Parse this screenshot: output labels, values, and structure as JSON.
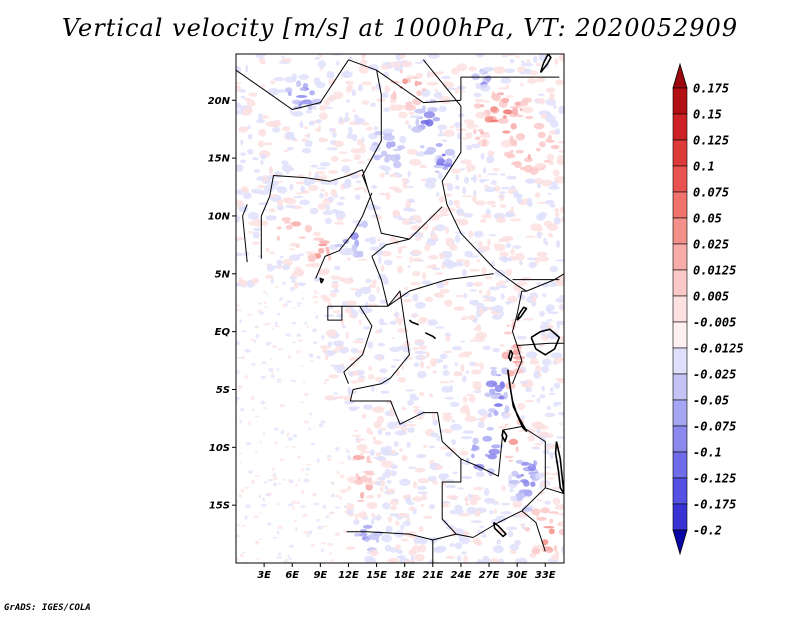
{
  "title": "Vertical velocity [m/s] at 1000hPa, VT: 2020052909",
  "credit": "GrADS: IGES/COLA",
  "map": {
    "lon_min": 0,
    "lon_max": 35,
    "lat_min": -20,
    "lat_max": 24,
    "lat_ticks": [
      {
        "value": 20,
        "label": "20N"
      },
      {
        "value": 15,
        "label": "15N"
      },
      {
        "value": 10,
        "label": "10N"
      },
      {
        "value": 5,
        "label": "5N"
      },
      {
        "value": 0,
        "label": "EQ"
      },
      {
        "value": -5,
        "label": "5S"
      },
      {
        "value": -10,
        "label": "10S"
      },
      {
        "value": -15,
        "label": "15S"
      }
    ],
    "lon_ticks": [
      {
        "value": 3,
        "label": "3E"
      },
      {
        "value": 6,
        "label": "6E"
      },
      {
        "value": 9,
        "label": "9E"
      },
      {
        "value": 12,
        "label": "12E"
      },
      {
        "value": 15,
        "label": "15E"
      },
      {
        "value": 18,
        "label": "18E"
      },
      {
        "value": 21,
        "label": "21E"
      },
      {
        "value": 24,
        "label": "24E"
      },
      {
        "value": 27,
        "label": "27E"
      },
      {
        "value": 30,
        "label": "30E"
      },
      {
        "value": 33,
        "label": "33E"
      }
    ],
    "hotspots": [
      {
        "lon": 18.2,
        "lat": 21.0,
        "sign": 1,
        "strength": 0.8,
        "sx": 1.6,
        "sy": 1.4
      },
      {
        "lon": 20.5,
        "lat": 17.5,
        "sign": -1,
        "strength": 0.9,
        "sx": 1.2,
        "sy": 2.0
      },
      {
        "lon": 22.0,
        "lat": 15.0,
        "sign": -1,
        "strength": 0.8,
        "sx": 1.0,
        "sy": 1.5
      },
      {
        "lon": 28.5,
        "lat": 18.5,
        "sign": 1,
        "strength": 0.7,
        "sx": 3.0,
        "sy": 2.5
      },
      {
        "lon": 31.5,
        "lat": 16.0,
        "sign": 1,
        "strength": 0.6,
        "sx": 2.5,
        "sy": 2.0
      },
      {
        "lon": 26.5,
        "lat": 21.5,
        "sign": -1,
        "strength": 0.5,
        "sx": 1.5,
        "sy": 1.2
      },
      {
        "lon": 7.0,
        "lat": 20.5,
        "sign": -1,
        "strength": 0.6,
        "sx": 2.0,
        "sy": 1.5
      },
      {
        "lon": 9.0,
        "lat": 7.0,
        "sign": 1,
        "strength": 0.7,
        "sx": 1.0,
        "sy": 2.0
      },
      {
        "lon": 6.5,
        "lat": 8.5,
        "sign": 1,
        "strength": 0.5,
        "sx": 2.5,
        "sy": 1.5
      },
      {
        "lon": 12.5,
        "lat": 8.0,
        "sign": -1,
        "strength": 0.5,
        "sx": 2.0,
        "sy": 1.5
      },
      {
        "lon": 29.5,
        "lat": -2.0,
        "sign": 1,
        "strength": 0.8,
        "sx": 0.8,
        "sy": 3.0
      },
      {
        "lon": 28.0,
        "lat": -5.0,
        "sign": -1,
        "strength": 0.8,
        "sx": 1.2,
        "sy": 2.5
      },
      {
        "lon": 26.5,
        "lat": -10.5,
        "sign": -1,
        "strength": 0.9,
        "sx": 1.5,
        "sy": 2.0
      },
      {
        "lon": 29.5,
        "lat": -9.0,
        "sign": 1,
        "strength": 0.7,
        "sx": 1.0,
        "sy": 2.0
      },
      {
        "lon": 31.0,
        "lat": -12.5,
        "sign": -1,
        "strength": 0.7,
        "sx": 1.2,
        "sy": 2.5
      },
      {
        "lon": 13.5,
        "lat": -12.5,
        "sign": 1,
        "strength": 0.6,
        "sx": 1.0,
        "sy": 2.5
      },
      {
        "lon": 14.0,
        "lat": -17.5,
        "sign": -1,
        "strength": 0.5,
        "sx": 1.5,
        "sy": 1.5
      },
      {
        "lon": 33.0,
        "lat": -17.5,
        "sign": 1,
        "strength": 0.6,
        "sx": 2.0,
        "sy": 2.0
      },
      {
        "lon": 16.0,
        "lat": 16.0,
        "sign": -1,
        "strength": 0.4,
        "sx": 2.0,
        "sy": 2.0
      }
    ],
    "countries": [
      [
        [
          0,
          22.6
        ],
        [
          6,
          19.2
        ],
        [
          9,
          19.8
        ],
        [
          12,
          23.5
        ]
      ],
      [
        [
          12,
          23.5
        ],
        [
          15,
          22.6
        ],
        [
          20,
          19.8
        ],
        [
          24,
          20.0
        ]
      ],
      [
        [
          24,
          20.0
        ],
        [
          24,
          22.0
        ],
        [
          34.5,
          22.0
        ]
      ],
      [
        [
          20,
          23.5
        ],
        [
          24,
          19.5
        ],
        [
          24,
          15.5
        ],
        [
          22,
          13.0
        ],
        [
          22.5,
          11.0
        ],
        [
          24,
          8.5
        ]
      ],
      [
        [
          24,
          8.5
        ],
        [
          27.5,
          5.5
        ],
        [
          30,
          4.0
        ],
        [
          31,
          3.5
        ],
        [
          34,
          4.5
        ],
        [
          35,
          5.0
        ]
      ],
      [
        [
          15,
          22.6
        ],
        [
          15.5,
          20.5
        ],
        [
          15.5,
          16.5
        ],
        [
          13.5,
          13.5
        ],
        [
          14,
          12.5
        ]
      ],
      [
        [
          14,
          12.5
        ],
        [
          13.5,
          14.0
        ],
        [
          12,
          13.5
        ],
        [
          10,
          13.0
        ],
        [
          7.5,
          13.3
        ],
        [
          4,
          13.5
        ],
        [
          3.6,
          11.7
        ]
      ],
      [
        [
          3.6,
          11.7
        ],
        [
          2.7,
          10.0
        ],
        [
          2.7,
          6.3
        ]
      ],
      [
        [
          1.2,
          11.0
        ],
        [
          0.7,
          10.0
        ],
        [
          1.2,
          6.0
        ]
      ],
      [
        [
          14,
          12.5
        ],
        [
          15,
          10.0
        ],
        [
          15.5,
          8.5
        ],
        [
          18.5,
          8.0
        ],
        [
          22,
          10.8
        ]
      ],
      [
        [
          8.5,
          4.6
        ],
        [
          9.5,
          6.5
        ],
        [
          11,
          7.0
        ],
        [
          12.5,
          8.5
        ],
        [
          13.5,
          10.0
        ],
        [
          14.5,
          12.0
        ]
      ],
      [
        [
          14.5,
          6.5
        ],
        [
          16,
          7.5
        ],
        [
          18.5,
          8.0
        ]
      ],
      [
        [
          14.5,
          6.5
        ],
        [
          15.5,
          4.5
        ],
        [
          16.2,
          2.2
        ],
        [
          18.5,
          3.5
        ],
        [
          22.5,
          4.5
        ],
        [
          27.5,
          5.0
        ]
      ],
      [
        [
          9.8,
          2.2
        ],
        [
          11.3,
          2.2
        ],
        [
          13.2,
          2.2
        ],
        [
          16.2,
          2.2
        ]
      ],
      [
        [
          9.8,
          2.2
        ],
        [
          9.8,
          1.0
        ],
        [
          11.3,
          1.0
        ],
        [
          11.3,
          2.2
        ]
      ],
      [
        [
          13.2,
          2.2
        ],
        [
          14.5,
          0.5
        ],
        [
          13.5,
          -2.0
        ],
        [
          11.5,
          -3.5
        ],
        [
          12.0,
          -4.5
        ]
      ],
      [
        [
          16.2,
          2.2
        ],
        [
          17.5,
          3.5
        ],
        [
          18.5,
          -2.0
        ],
        [
          16.5,
          -4.0
        ],
        [
          15.5,
          -4.5
        ],
        [
          12.5,
          -5.0
        ],
        [
          12.2,
          -6.0
        ]
      ],
      [
        [
          12.2,
          -6.0
        ],
        [
          16.5,
          -6.0
        ],
        [
          17.5,
          -8.0
        ],
        [
          20,
          -7.0
        ],
        [
          21.5,
          -7.0
        ],
        [
          22,
          -9.5
        ],
        [
          24,
          -11.0
        ]
      ],
      [
        [
          24,
          -11.0
        ],
        [
          24,
          -13.0
        ],
        [
          22,
          -13.0
        ],
        [
          22,
          -16.2
        ],
        [
          23.5,
          -17.5
        ],
        [
          25.3,
          -17.8
        ]
      ],
      [
        [
          11.8,
          -17.3
        ],
        [
          14,
          -17.3
        ],
        [
          18.5,
          -17.5
        ],
        [
          21,
          -18.0
        ],
        [
          23.5,
          -17.5
        ]
      ],
      [
        [
          21,
          -18.0
        ],
        [
          21,
          -22.0
        ]
      ],
      [
        [
          24,
          -11.0
        ],
        [
          26,
          -11.7
        ],
        [
          28,
          -12.5
        ],
        [
          28.5,
          -8.5
        ],
        [
          30.5,
          -8.2
        ]
      ],
      [
        [
          29.5,
          -4.5
        ],
        [
          30.5,
          -2.5
        ],
        [
          30,
          -1.2
        ],
        [
          29.5,
          0.0
        ],
        [
          30,
          1.5
        ],
        [
          30.5,
          3.5
        ],
        [
          31,
          3.5
        ]
      ],
      [
        [
          29.5,
          4.5
        ],
        [
          34.5,
          4.5
        ]
      ],
      [
        [
          30,
          -1.2
        ],
        [
          33.5,
          -1.0
        ],
        [
          35,
          -1.0
        ]
      ],
      [
        [
          30.5,
          -8.2
        ],
        [
          33,
          -9.5
        ],
        [
          33,
          -13.5
        ],
        [
          30.5,
          -15.5
        ],
        [
          28,
          -16.5
        ],
        [
          25.3,
          -17.8
        ]
      ],
      [
        [
          33,
          -13.5
        ],
        [
          35,
          -14.0
        ]
      ],
      [
        [
          30.5,
          -15.5
        ],
        [
          32,
          -16.5
        ],
        [
          33,
          -19.0
        ]
      ]
    ],
    "lakes": [
      [
        [
          29.0,
          -3.3
        ],
        [
          29.3,
          -5.0
        ],
        [
          29.6,
          -6.5
        ],
        [
          30.3,
          -7.6
        ],
        [
          31.0,
          -8.6
        ],
        [
          30.6,
          -8.3
        ],
        [
          30.0,
          -7.2
        ],
        [
          29.5,
          -6.0
        ],
        [
          29.2,
          -4.5
        ],
        [
          29.0,
          -3.3
        ]
      ],
      [
        [
          34.2,
          -9.5
        ],
        [
          34.6,
          -11.0
        ],
        [
          34.8,
          -12.5
        ],
        [
          35.0,
          -14.0
        ],
        [
          34.6,
          -13.5
        ],
        [
          34.4,
          -12.0
        ],
        [
          34.1,
          -10.5
        ],
        [
          34.2,
          -9.5
        ]
      ],
      [
        [
          29.3,
          -1.6
        ],
        [
          29.1,
          -2.2
        ],
        [
          29.3,
          -2.5
        ],
        [
          29.5,
          -1.9
        ],
        [
          29.3,
          -1.6
        ]
      ],
      [
        [
          30.0,
          1.0
        ],
        [
          30.4,
          1.3
        ],
        [
          31.0,
          2.0
        ],
        [
          30.7,
          2.1
        ],
        [
          30.2,
          1.5
        ],
        [
          30.0,
          1.0
        ]
      ],
      [
        [
          31.5,
          -0.5
        ],
        [
          32.5,
          0.0
        ],
        [
          33.5,
          0.2
        ],
        [
          34.5,
          -0.5
        ],
        [
          34.0,
          -1.5
        ],
        [
          33.0,
          -2.0
        ],
        [
          32.0,
          -1.5
        ],
        [
          31.5,
          -0.5
        ]
      ],
      [
        [
          28.5,
          -8.5
        ],
        [
          28.9,
          -9.0
        ],
        [
          28.7,
          -9.5
        ],
        [
          28.4,
          -9.0
        ],
        [
          28.5,
          -8.5
        ]
      ],
      [
        [
          27.5,
          -16.5
        ],
        [
          28.0,
          -16.8
        ],
        [
          28.8,
          -17.5
        ],
        [
          28.5,
          -17.7
        ],
        [
          27.6,
          -17.0
        ],
        [
          27.5,
          -16.5
        ]
      ],
      [
        [
          20.2,
          -0.1
        ],
        [
          21.0,
          -0.4
        ],
        [
          21.3,
          -0.6
        ]
      ],
      [
        [
          18.5,
          1.0
        ],
        [
          18.8,
          0.8
        ],
        [
          19.5,
          0.6
        ]
      ],
      [
        [
          32.5,
          22.4
        ],
        [
          33.2,
          23.1
        ],
        [
          33.6,
          23.7
        ],
        [
          33.3,
          24.0
        ],
        [
          32.8,
          23.2
        ],
        [
          32.5,
          22.4
        ]
      ],
      [
        [
          9.1,
          4.2
        ],
        [
          9.3,
          4.5
        ],
        [
          9.0,
          4.6
        ],
        [
          9.1,
          4.2
        ]
      ]
    ]
  },
  "colorbar": {
    "levels": [
      {
        "label": "0.175",
        "color": "#b40f14"
      },
      {
        "label": "0.15",
        "color": "#cc2226"
      },
      {
        "label": "0.125",
        "color": "#dd3a38"
      },
      {
        "label": "0.1",
        "color": "#ea5450"
      },
      {
        "label": "0.075",
        "color": "#f0726c"
      },
      {
        "label": "0.05",
        "color": "#f4908a"
      },
      {
        "label": "0.025",
        "color": "#f8acaa"
      },
      {
        "label": "0.0125",
        "color": "#fbc8c8"
      },
      {
        "label": "0.005",
        "color": "#fde1e1"
      },
      {
        "label": "-0.005",
        "color": "#fff1f1"
      },
      {
        "label": "-0.0125",
        "color": "#dfe0fb"
      },
      {
        "label": "-0.025",
        "color": "#c3c3f6"
      },
      {
        "label": "-0.05",
        "color": "#a7a6f2"
      },
      {
        "label": "-0.075",
        "color": "#8c88ed"
      },
      {
        "label": "-0.1",
        "color": "#706be8"
      },
      {
        "label": "-0.125",
        "color": "#5450e2"
      },
      {
        "label": "-0.175",
        "color": "#3632d4"
      },
      {
        "label": "-0.2",
        "color": "#1c18c0"
      }
    ],
    "top_color": "#9a0a0e",
    "bottom_color": "#0a06a6"
  }
}
